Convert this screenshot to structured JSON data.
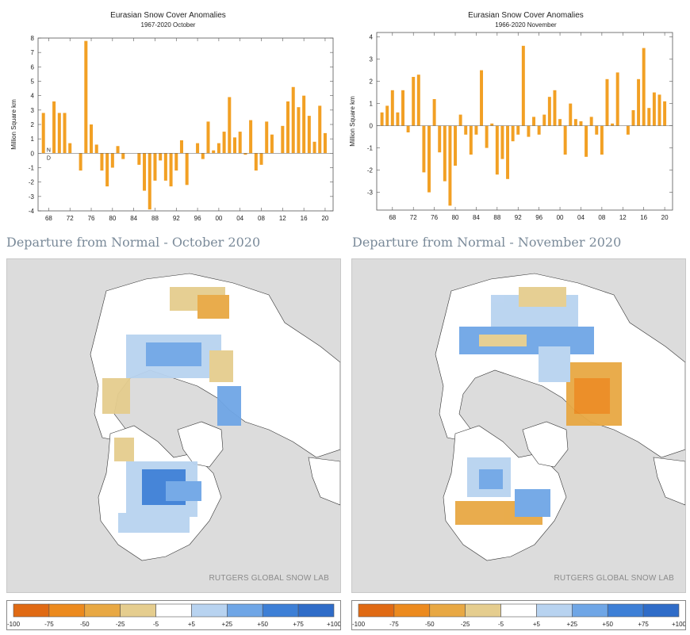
{
  "charts": [
    {
      "title": "Eurasian Snow Cover Anomalies",
      "subtitle": "1967-2020 October",
      "ylabel": "Million Square km",
      "note_top": "N",
      "note_bottom": "D"
    },
    {
      "title": "Eurasian Snow Cover Anomalies",
      "subtitle": "1966-2020 November",
      "ylabel": "Million Square km"
    }
  ],
  "chart_data": [
    {
      "type": "bar",
      "title": "Eurasian Snow Cover Anomalies",
      "subtitle": "1967-2020 October",
      "xlabel": "",
      "ylabel": "Million Square km",
      "ylim": [
        -4,
        8
      ],
      "yticks": [
        "8",
        "7",
        "6",
        "5",
        "4",
        "3",
        "2",
        "1",
        "0",
        "-1",
        "-2",
        "-3",
        "-4"
      ],
      "xticks": [
        "68",
        "72",
        "76",
        "80",
        "84",
        "88",
        "92",
        "96",
        "00",
        "04",
        "08",
        "12",
        "16",
        "20"
      ],
      "xstart": 1967,
      "color": "#f2a024",
      "values": [
        2.8,
        0.0,
        3.6,
        2.8,
        2.8,
        0.7,
        0.0,
        -1.2,
        7.8,
        2.0,
        0.6,
        -1.2,
        -2.3,
        -1.0,
        0.5,
        -0.4,
        0.0,
        0.0,
        -0.8,
        -2.6,
        -3.9,
        -1.9,
        -0.5,
        -1.9,
        -2.3,
        -1.2,
        0.9,
        -2.2,
        0.0,
        0.7,
        -0.4,
        2.2,
        0.2,
        0.7,
        1.5,
        3.9,
        1.1,
        1.5,
        -0.1,
        2.3,
        -1.2,
        -0.8,
        2.2,
        1.3,
        0.0,
        1.9,
        3.6,
        4.6,
        3.2,
        4.0,
        2.6,
        0.8,
        3.3,
        1.4
      ]
    },
    {
      "type": "bar",
      "title": "Eurasian Snow Cover Anomalies",
      "subtitle": "1966-2020 November",
      "xlabel": "",
      "ylabel": "Million Square km",
      "ylim": [
        -3.8,
        4.2
      ],
      "yticks": [
        "4",
        "3",
        "2",
        "1",
        "0",
        "-1",
        "-2",
        "-3"
      ],
      "xticks": [
        "68",
        "72",
        "76",
        "80",
        "84",
        "88",
        "92",
        "96",
        "00",
        "04",
        "08",
        "12",
        "16",
        "20"
      ],
      "xstart": 1966,
      "color": "#f2a024",
      "values": [
        0.6,
        0.9,
        1.6,
        0.6,
        1.6,
        -0.3,
        2.2,
        2.3,
        -2.1,
        -3.0,
        1.2,
        -1.2,
        -2.5,
        -3.6,
        -1.8,
        0.5,
        -0.4,
        -1.3,
        -0.4,
        2.5,
        -1.0,
        0.1,
        -2.2,
        -1.5,
        -2.4,
        -0.7,
        -0.4,
        3.6,
        -0.5,
        0.4,
        -0.4,
        0.5,
        1.3,
        1.6,
        0.3,
        -1.3,
        1.0,
        0.3,
        0.2,
        -1.4,
        0.4,
        -0.4,
        -1.3,
        2.1,
        0.1,
        2.4,
        0.0,
        -0.4,
        0.7,
        2.1,
        3.5,
        0.8,
        1.5,
        1.4,
        1.1
      ]
    }
  ],
  "maps": [
    {
      "heading": "Departure from Normal - October 2020",
      "credit": "RUTGERS GLOBAL SNOW LAB"
    },
    {
      "heading": "Departure from Normal - November 2020",
      "credit": "RUTGERS GLOBAL SNOW LAB"
    }
  ],
  "legend": {
    "colors": [
      "#e06a14",
      "#ec8a1e",
      "#e8a843",
      "#e5cd8e",
      "#ffffff",
      "#b8d3f0",
      "#6fa6e6",
      "#3d7fd6",
      "#2f6cc8"
    ],
    "labels": [
      "-100",
      "-75",
      "-50",
      "-25",
      "-5",
      "+5",
      "+25",
      "+50",
      "+75",
      "+100"
    ]
  }
}
